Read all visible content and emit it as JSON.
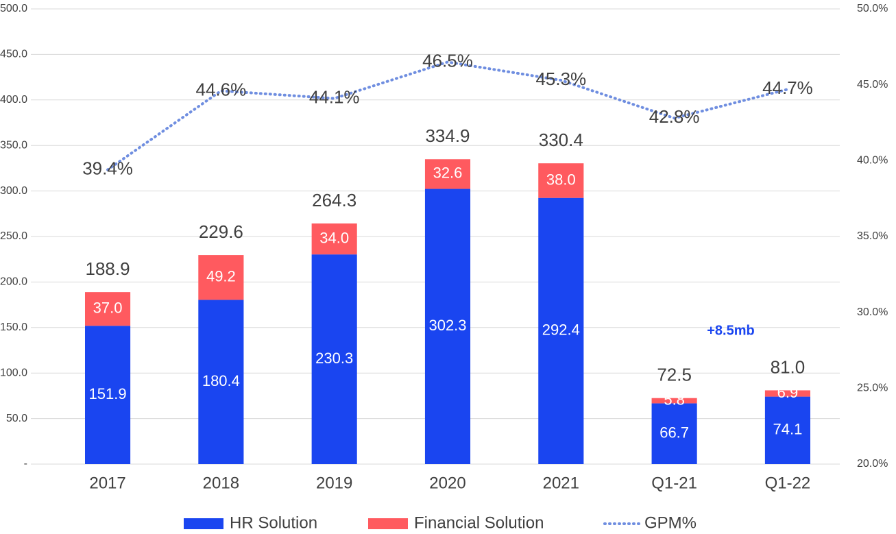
{
  "chart_data": {
    "type": "stacked-bar-line",
    "categories": [
      "2017",
      "2018",
      "2019",
      "2020",
      "2021",
      "Q1-21",
      "Q1-22"
    ],
    "series": [
      {
        "name": "HR Solution",
        "color": "#1a45f0",
        "type": "bar",
        "values": [
          151.9,
          180.4,
          230.3,
          302.3,
          292.4,
          66.7,
          74.1
        ]
      },
      {
        "name": "Financial Solution",
        "color": "#ff5a5f",
        "type": "bar",
        "values": [
          37.0,
          49.2,
          34.0,
          32.6,
          38.0,
          5.8,
          6.9
        ],
        "value_labels": [
          "37.0",
          "49.2",
          "34.0",
          "32.6",
          "38.0",
          "5.8",
          "6.9"
        ]
      },
      {
        "name": "GPM%",
        "color": "#6f8ee0",
        "type": "line",
        "axis": "y2",
        "values": [
          39.4,
          44.6,
          44.1,
          46.5,
          45.3,
          42.8,
          44.7
        ],
        "value_labels": [
          "39.4%",
          "44.6%",
          "44.1%",
          "46.5%",
          "45.3%",
          "42.8%",
          "44.7%"
        ]
      }
    ],
    "totals": [
      188.9,
      229.6,
      264.3,
      334.9,
      330.4,
      72.5,
      81.0
    ],
    "total_labels": [
      "188.9",
      "229.6",
      "264.3",
      "334.9",
      "330.4",
      "72.5",
      "81.0"
    ],
    "annotation": "+8.5mb",
    "ylim": [
      0,
      500
    ],
    "yticks": [
      {
        "value": 0,
        "label": "-"
      },
      {
        "value": 50,
        "label": "50.0"
      },
      {
        "value": 100,
        "label": "100.0"
      },
      {
        "value": 150,
        "label": "150.0"
      },
      {
        "value": 200,
        "label": "200.0"
      },
      {
        "value": 250,
        "label": "250.0"
      },
      {
        "value": 300,
        "label": "300.0"
      },
      {
        "value": 350,
        "label": "350.0"
      },
      {
        "value": 400,
        "label": "400.0"
      },
      {
        "value": 450,
        "label": "450.0"
      },
      {
        "value": 500,
        "label": "500.0"
      }
    ],
    "y2lim": [
      20,
      50
    ],
    "y2ticks": [
      {
        "value": 20,
        "label": "20.0%"
      },
      {
        "value": 25,
        "label": "25.0%"
      },
      {
        "value": 30,
        "label": "30.0%"
      },
      {
        "value": 35,
        "label": "35.0%"
      },
      {
        "value": 40,
        "label": "40.0%"
      },
      {
        "value": 45,
        "label": "45.0%"
      },
      {
        "value": 50,
        "label": "50.0%"
      }
    ],
    "grid": true,
    "legend": "bottom"
  }
}
